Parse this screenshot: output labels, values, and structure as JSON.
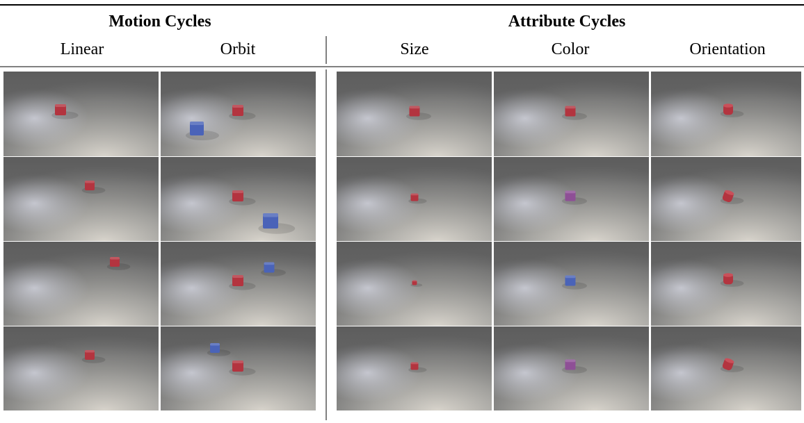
{
  "header": {
    "groups": [
      "Motion Cycles",
      "Attribute Cycles"
    ],
    "columns": [
      "Linear",
      "Orbit",
      "Size",
      "Color",
      "Orientation"
    ]
  }
}
